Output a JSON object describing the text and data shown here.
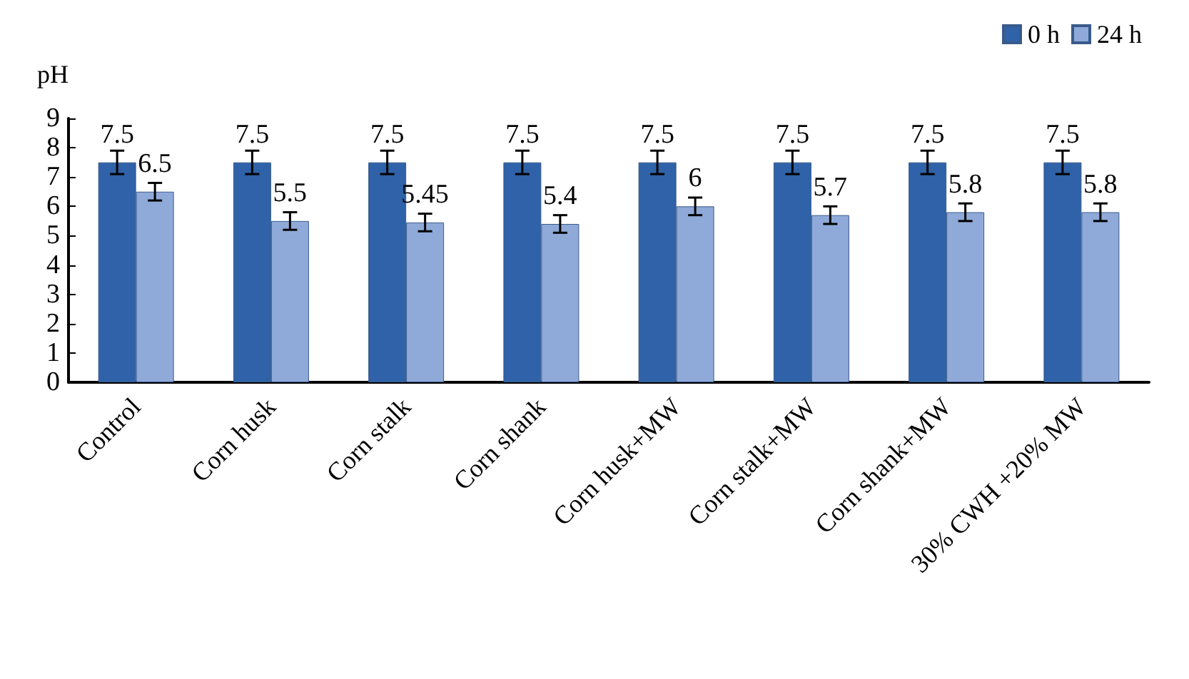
{
  "chart_data": {
    "type": "bar",
    "ylabel": "pH",
    "categories": [
      "Control",
      "Corn husk",
      "Corn stalk",
      "Corn shank",
      "Corn husk+MW",
      "Corn stalk+MW",
      "Corn shank+MW",
      "30% CWH +20% MW"
    ],
    "series": [
      {
        "name": "0 h",
        "color": "#2f62a8",
        "values": [
          7.5,
          7.5,
          7.5,
          7.5,
          7.5,
          7.5,
          7.5,
          7.5
        ],
        "errors": [
          0.4,
          0.4,
          0.4,
          0.4,
          0.4,
          0.4,
          0.4,
          0.4
        ]
      },
      {
        "name": "24 h",
        "color": "#8faad8",
        "values": [
          6.5,
          5.5,
          5.45,
          5.4,
          6,
          5.7,
          5.8,
          5.8
        ],
        "errors": [
          0.3,
          0.3,
          0.3,
          0.3,
          0.3,
          0.3,
          0.3,
          0.3
        ]
      }
    ],
    "ylim": [
      0,
      9
    ],
    "yticks": [
      0,
      1,
      2,
      3,
      4,
      5,
      6,
      7,
      8,
      9
    ],
    "grid": false,
    "legend": "top right",
    "data_labels": true
  }
}
